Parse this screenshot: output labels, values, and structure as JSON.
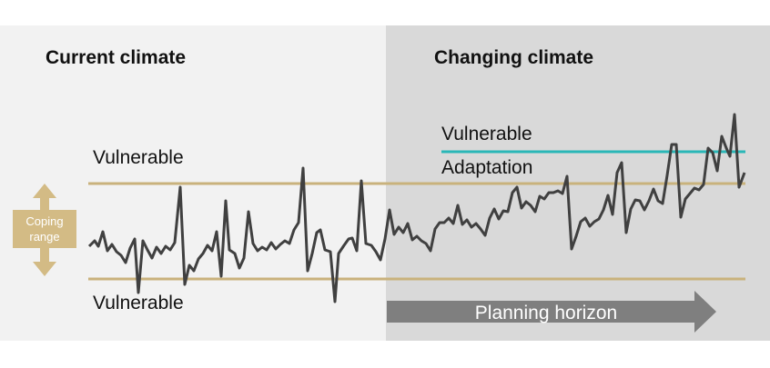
{
  "current_climate_title": "Current climate",
  "changing_climate_title": "Changing climate",
  "vulnerable_upper_label": "Vulnerable",
  "vulnerable_lower_label": "Vulnerable",
  "vulnerable_adapted_label": "Vulnerable",
  "adaptation_label": "Adaptation",
  "coping_range_label_line1": "Coping",
  "coping_range_label_line2": "range",
  "planning_horizon_label": "Planning horizon",
  "colors": {
    "current_panel": "#f2f2f2",
    "changing_panel": "#d9d9d9",
    "coping_threshold": "#c9b27c",
    "adaptation_threshold": "#2ab7b7",
    "series_line": "#404040",
    "arrow": "#7f7f7f",
    "coping_arrow": "#d3bb85"
  }
}
